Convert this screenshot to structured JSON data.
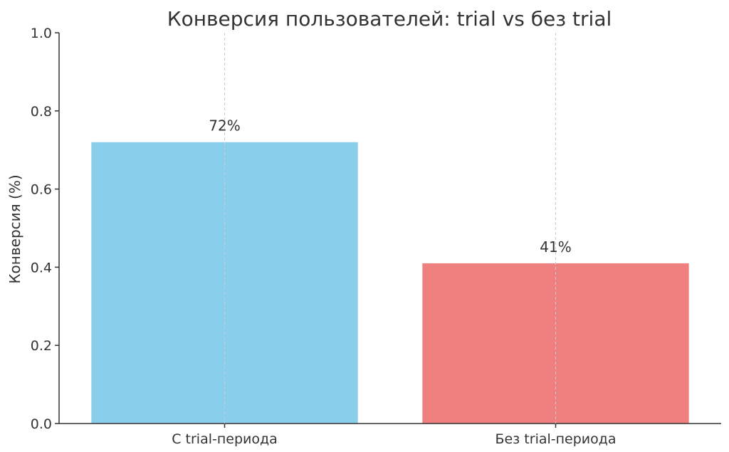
{
  "chart_data": {
    "type": "bar",
    "title": "Конверсия пользователей: trial vs без trial",
    "xlabel": "",
    "ylabel": "Конверсия (%)",
    "categories": [
      "C trial-периода",
      "Без trial-периода"
    ],
    "values": [
      0.72,
      0.41
    ],
    "data_labels": [
      "72%",
      "41%"
    ],
    "colors": [
      "#89CFEB",
      "#F08080"
    ],
    "ylim": [
      0,
      1.0
    ],
    "yticks": [
      0.0,
      0.2,
      0.4,
      0.6,
      0.8,
      1.0
    ],
    "ytick_labels": [
      "0.0",
      "0.2",
      "0.4",
      "0.6",
      "0.8",
      "1.0"
    ],
    "grid": "vertical-dashed",
    "legend": "none"
  }
}
